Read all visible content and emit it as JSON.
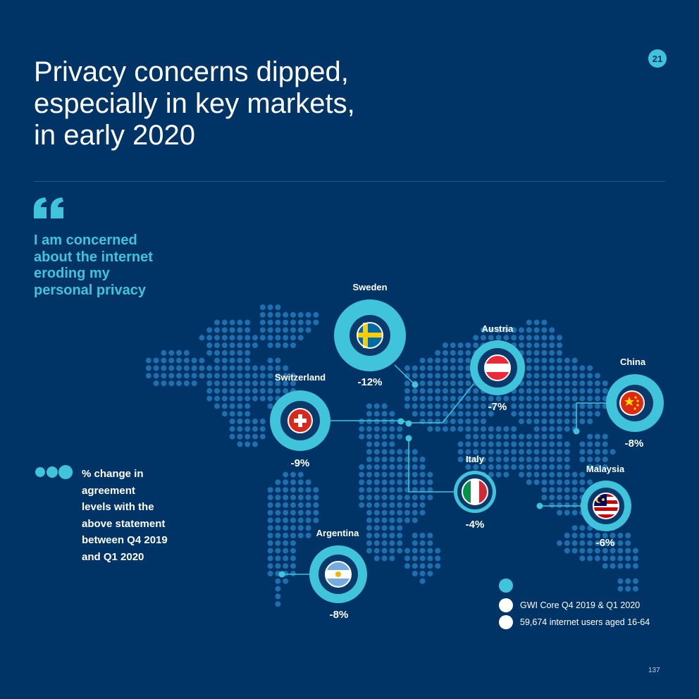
{
  "title_lines": [
    "Privacy concerns dipped,",
    "especially in key markets,",
    "in early 2020"
  ],
  "section_badge": "21",
  "statement_lines": [
    "I am concerned",
    "about the internet",
    "eroding my",
    "personal privacy"
  ],
  "legend_lines": [
    "% change in",
    "agreement",
    "levels with the",
    "above statement",
    "between Q4 2019",
    "and Q1 2020"
  ],
  "countries": [
    {
      "name": "Sweden",
      "value": "-12%",
      "flag": "sweden-flag"
    },
    {
      "name": "Austria",
      "value": "-7%",
      "flag": "austria-flag"
    },
    {
      "name": "China",
      "value": "-8%",
      "flag": "china-flag"
    },
    {
      "name": "Switzerland",
      "value": "-9%",
      "flag": "switzerland-flag"
    },
    {
      "name": "Italy",
      "value": "-4%",
      "flag": "italy-flag"
    },
    {
      "name": "Malaysia",
      "value": "-6%",
      "flag": "malaysia-flag"
    },
    {
      "name": "Argentina",
      "value": "-8%",
      "flag": "argentina-flag"
    }
  ],
  "source": {
    "lines": [
      "GWI Core Q4 2019 & Q1 2020",
      "59,674 internet users aged 16-64"
    ]
  },
  "page_number": "137",
  "colors": {
    "background": "#003466",
    "accent": "#3fc4dc",
    "map_dot": "#1f6fae",
    "ring_outer": "#3fc4dc",
    "ring_inner": "#0a3a6b"
  }
}
